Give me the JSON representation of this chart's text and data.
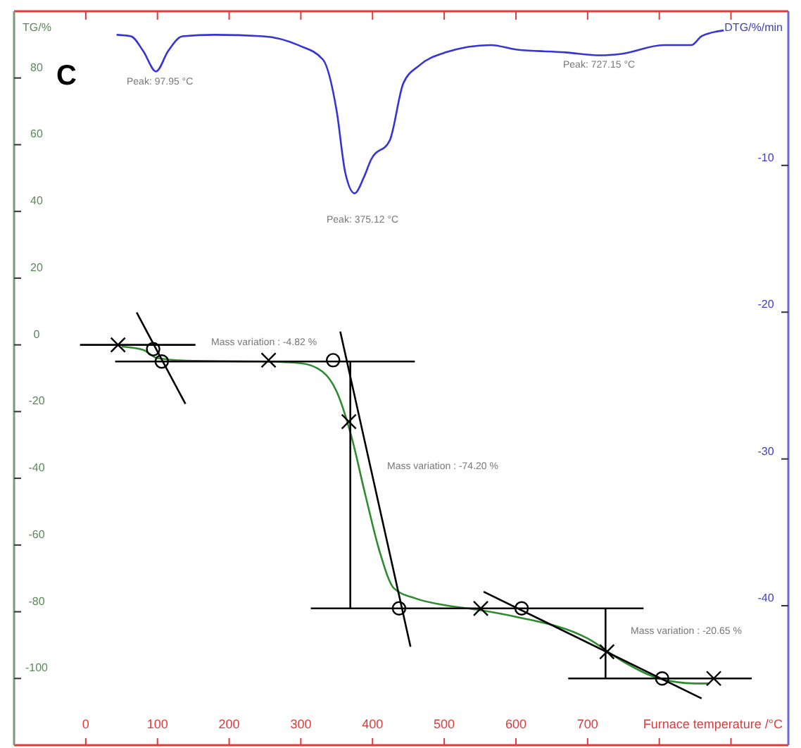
{
  "chart_data": {
    "type": "line",
    "title": "C",
    "xlabel": "Furnace temperature /°C",
    "ylabel": "TG/%",
    "y2label": "DTG/%/min",
    "xlim": [
      -100,
      980
    ],
    "xticks": [
      0,
      100,
      200,
      300,
      400,
      500,
      600,
      700,
      {
        "value": 800,
        "label": null
      },
      {
        "value": 900,
        "label": null
      }
    ],
    "ylim": [
      -120,
      100
    ],
    "yticks": [
      80,
      60,
      40,
      20,
      0,
      -20,
      -40,
      -60,
      -80,
      -100
    ],
    "y2lim": [
      -49.5,
      0.5
    ],
    "y2ticks": [
      -10,
      -20,
      -30,
      -40
    ],
    "grid": false,
    "marker": "none",
    "series": [
      {
        "color": "#3434d8",
        "axis": "y2",
        "x": [
          43,
          63,
          80,
          98,
          115,
          135,
          180,
          247,
          296,
          331,
          350,
          362,
          375,
          388,
          398,
          424,
          443,
          465,
          502,
          565,
          600,
          669,
          718,
          747,
          806,
          845,
          859,
          890
        ],
        "values": [
          -1.1,
          -1.2,
          -2.2,
          -3.6,
          -2.2,
          -1.2,
          -1.1,
          -1.2,
          -1.8,
          -2.8,
          -6.3,
          -10.5,
          -11.9,
          -10.8,
          -9.6,
          -8.3,
          -4.4,
          -3.2,
          -2.3,
          -1.8,
          -2.1,
          -2.3,
          -2.5,
          -2.4,
          -1.8,
          -1.8,
          -1.2,
          -0.8
        ]
      },
      {
        "color": "#2e8b2e",
        "x": [
          50,
          80,
          100,
          150,
          250,
          300,
          330,
          350,
          370,
          390,
          410,
          430,
          460,
          500,
          550,
          600,
          700,
          750,
          800,
          850,
          870
        ],
        "values": [
          -0.5,
          -1.5,
          -4,
          -4.8,
          -5,
          -5.5,
          -8,
          -14,
          -27,
          -45,
          -62,
          -73,
          -76,
          -78,
          -79.5,
          -81.5,
          -88,
          -95,
          -100,
          -101.5,
          -101.5
        ]
      },
      {
        "type": "line",
        "color": "#000000",
        "x": [
          -8,
          153
        ],
        "values": [
          0,
          0
        ]
      },
      {
        "type": "line",
        "color": "#000000",
        "x": [
          41,
          459
        ],
        "values": [
          -5,
          -5
        ]
      },
      {
        "type": "line",
        "color": "#000000",
        "x": [
          71,
          139
        ],
        "values": [
          9.7,
          -17.7
        ]
      },
      {
        "type": "line",
        "color": "#000000",
        "x": [
          355,
          453
        ],
        "values": [
          4,
          -90.5
        ]
      },
      {
        "type": "line",
        "color": "#000000",
        "x": [
          314,
          778
        ],
        "values": [
          -79,
          -79
        ]
      },
      {
        "type": "line",
        "color": "#000000",
        "x": [
          555,
          859
        ],
        "values": [
          -74,
          -106
        ]
      },
      {
        "type": "line",
        "color": "#000000",
        "x": [
          673,
          929
        ],
        "values": [
          -100,
          -100
        ]
      },
      {
        "type": "line",
        "color": "#000000",
        "x": [
          369,
          369
        ],
        "values": [
          -5,
          -79
        ]
      },
      {
        "type": "line",
        "color": "#000000",
        "x": [
          725,
          725
        ],
        "values": [
          -79,
          -100
        ]
      },
      {
        "type": "scatter",
        "color": "#000000",
        "marker": "cross",
        "x": [
          45,
          255,
          367,
          551,
          727,
          876
        ],
        "values": [
          0,
          -4.6,
          -23,
          -79,
          -92,
          -100
        ]
      },
      {
        "type": "scatter",
        "color": "#000000",
        "marker": "circle",
        "x": [
          94,
          106,
          345,
          437,
          608,
          804
        ],
        "values": [
          -1.3,
          -5,
          -4.6,
          -79,
          -79,
          -100
        ]
      }
    ],
    "annotations": [
      "Peak: 97.95 °C",
      "Peak: 375.12 °C",
      "Peak: 727.15 °C",
      "Mass variation : -4.82 %",
      "Mass variation : -74.20 %",
      "Mass variation : -20.65 %"
    ]
  }
}
